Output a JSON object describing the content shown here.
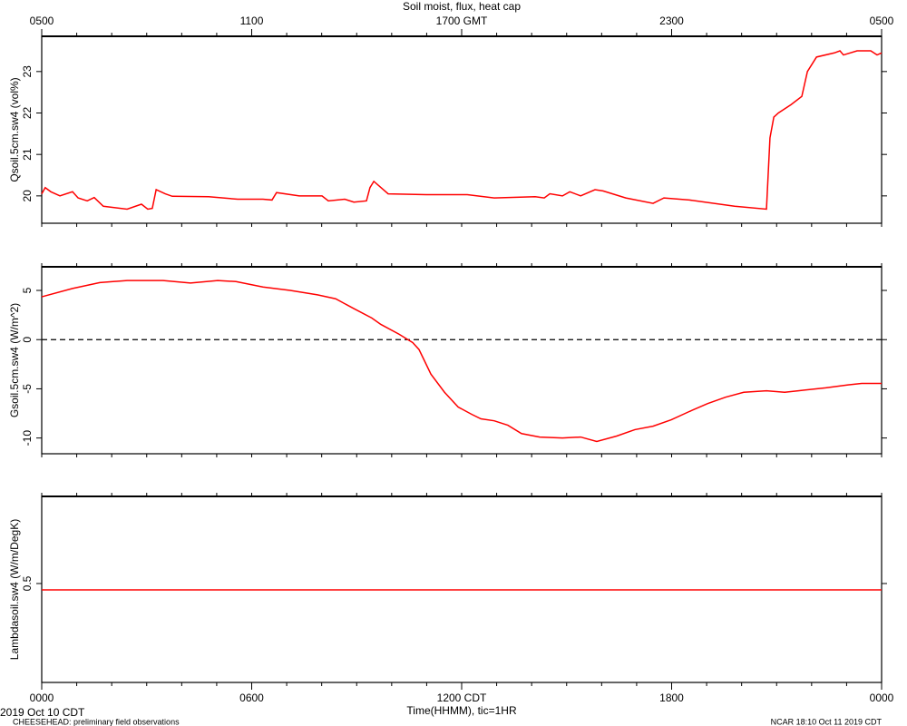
{
  "chart_data": [
    {
      "type": "line",
      "title": "Soil moist, flux, heat cap",
      "ylabel": "Qsoil.5cm.sw4 (vol%)",
      "color": "#ff0000",
      "xlim": [
        0,
        24
      ],
      "top_xticks": [
        {
          "value": 0,
          "label": "0500"
        },
        {
          "value": 6,
          "label": "1100"
        },
        {
          "value": 12,
          "label": "1700 GMT"
        },
        {
          "value": 18,
          "label": "2300"
        },
        {
          "value": 24,
          "label": "0500"
        }
      ],
      "xminor_ticks": [
        0,
        1,
        2,
        3,
        4,
        5,
        6,
        7,
        8,
        9,
        10,
        11,
        12,
        13,
        14,
        15,
        16,
        17,
        18,
        19,
        20,
        21,
        22,
        23,
        24
      ],
      "ylim": [
        19.34,
        23.85
      ],
      "yticks": [
        20,
        21,
        22,
        23
      ],
      "x": [
        0,
        0.1,
        0.26,
        0.52,
        0.88,
        1.04,
        1.3,
        1.5,
        1.76,
        2.44,
        2.85,
        3.03,
        3.16,
        3.27,
        3.53,
        3.73,
        4.77,
        5.6,
        6.32,
        6.58,
        6.71,
        7.36,
        8.01,
        8.19,
        8.66,
        8.92,
        9.28,
        9.38,
        9.49,
        9.9,
        10.99,
        12.16,
        12.93,
        14.1,
        14.36,
        14.52,
        14.88,
        15.09,
        15.4,
        15.81,
        16.04,
        16.69,
        17.47,
        17.78,
        18.51,
        19.8,
        20.71,
        20.81,
        20.92,
        21.05,
        21.41,
        21.72,
        21.88,
        22.14,
        22.65,
        22.81,
        22.91,
        23.3,
        23.69,
        23.87,
        24.0
      ],
      "values": [
        20.05,
        20.2,
        20.1,
        20.0,
        20.1,
        19.95,
        19.88,
        19.96,
        19.75,
        19.68,
        19.8,
        19.68,
        19.7,
        20.15,
        20.05,
        19.99,
        19.98,
        19.92,
        19.92,
        19.9,
        20.08,
        20.0,
        20.0,
        19.88,
        19.92,
        19.85,
        19.88,
        20.2,
        20.35,
        20.05,
        20.03,
        20.03,
        19.95,
        19.98,
        19.95,
        20.05,
        20.0,
        20.1,
        20.0,
        20.15,
        20.12,
        19.95,
        19.82,
        19.95,
        19.9,
        19.75,
        19.68,
        21.4,
        21.9,
        22.0,
        22.2,
        22.4,
        23.0,
        23.35,
        23.45,
        23.5,
        23.4,
        23.5,
        23.5,
        23.4,
        23.45
      ]
    },
    {
      "type": "line",
      "ylabel": "Gsoil.5cm.sw4 (W/m^2)",
      "color": "#ff0000",
      "xlim": [
        0,
        24
      ],
      "ylim": [
        -11.6,
        7.4
      ],
      "yticks": [
        -10,
        -5,
        0,
        5
      ],
      "reference_line": 0,
      "x": [
        0,
        0.88,
        1.66,
        2.44,
        3.47,
        4.25,
        5.03,
        5.55,
        6.32,
        7.1,
        7.88,
        8.4,
        8.92,
        9.43,
        9.69,
        10.21,
        10.6,
        10.78,
        10.91,
        11.12,
        11.51,
        11.9,
        12.29,
        12.55,
        12.93,
        13.32,
        13.71,
        14.23,
        14.88,
        15.4,
        15.86,
        16.43,
        16.95,
        17.47,
        17.99,
        18.51,
        19.03,
        19.54,
        20.06,
        20.71,
        21.23,
        21.62,
        22.4,
        23.04,
        23.43,
        24.0
      ],
      "values": [
        4.35,
        5.2,
        5.8,
        6.0,
        6.0,
        5.75,
        6.0,
        5.9,
        5.35,
        5.0,
        4.55,
        4.15,
        3.15,
        2.2,
        1.55,
        0.55,
        -0.3,
        -1.0,
        -1.95,
        -3.5,
        -5.35,
        -6.85,
        -7.6,
        -8.05,
        -8.25,
        -8.7,
        -9.55,
        -9.9,
        -10.0,
        -9.9,
        -10.35,
        -9.8,
        -9.15,
        -8.8,
        -8.15,
        -7.3,
        -6.5,
        -5.85,
        -5.35,
        -5.2,
        -5.35,
        -5.2,
        -4.9,
        -4.6,
        -4.45,
        -4.45
      ]
    },
    {
      "type": "line",
      "ylabel": "Lambdasoil.sw4 (W/m/DegK)",
      "color": "#ff0000",
      "xlim": [
        0,
        24
      ],
      "ylim": [
        0.2275,
        0.74
      ],
      "yticks": [
        0.5
      ],
      "xticks": [
        {
          "value": 0,
          "label": "0000"
        },
        {
          "value": 6,
          "label": "0600"
        },
        {
          "value": 12,
          "label": "1200 CDT"
        },
        {
          "value": 18,
          "label": "1800"
        },
        {
          "value": 24,
          "label": "0000"
        }
      ],
      "xlabel": "Time(HHMM), tic=1HR",
      "x": [
        0,
        24
      ],
      "values": [
        0.4825,
        0.4825
      ]
    }
  ],
  "footer": {
    "date": "2019 Oct 10 CDT",
    "project": "CHEESEHEAD: preliminary field observations",
    "credit": "NCAR 18:10 Oct 11 2019 CDT"
  }
}
